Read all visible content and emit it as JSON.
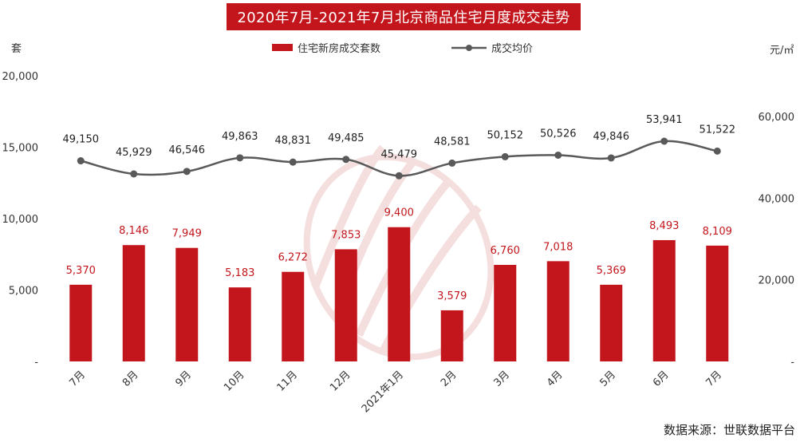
{
  "title": "2020年7月-2021年7月北京商品住宅月度成交走势",
  "left_unit": "套",
  "right_unit": "元/㎡",
  "legend": {
    "bar": "住宅新房成交套数",
    "line": "成交均价"
  },
  "source": "数据来源：世联数据平台",
  "chart_data": {
    "type": "bar",
    "categories": [
      "7月",
      "8月",
      "9月",
      "10月",
      "11月",
      "12月",
      "2021年1月",
      "2月",
      "3月",
      "4月",
      "5月",
      "6月",
      "7月"
    ],
    "series": [
      {
        "name": "住宅新房成交套数",
        "type": "bar",
        "axis": "left",
        "values": [
          5370,
          8146,
          7949,
          5183,
          6272,
          7853,
          9400,
          3579,
          6760,
          7018,
          5369,
          8493,
          8109
        ]
      },
      {
        "name": "成交均价",
        "type": "line",
        "axis": "right",
        "values": [
          49150,
          45929,
          46546,
          49863,
          48831,
          49485,
          45479,
          48581,
          50152,
          50526,
          49846,
          53941,
          51522
        ]
      }
    ],
    "y_left": {
      "ylim": [
        0,
        20000
      ],
      "ticks": [
        "-",
        "5,000",
        "10,000",
        "15,000",
        "20,000"
      ]
    },
    "y_right": {
      "ylim": [
        0,
        70000
      ],
      "ticks": [
        "-",
        "20,000",
        "40,000",
        "60,000"
      ]
    },
    "colors": {
      "bar": "#c3161c",
      "line": "#595959"
    },
    "grid": false,
    "legend_position": "top-center"
  }
}
